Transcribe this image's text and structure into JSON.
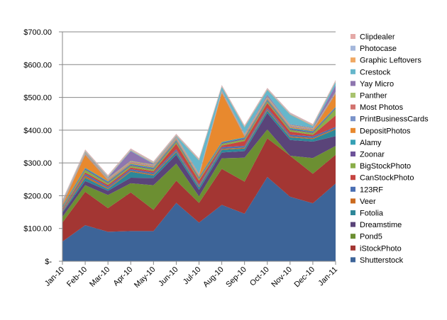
{
  "chart_data": {
    "type": "area",
    "stacked": true,
    "categories": [
      "Jan-10",
      "Feb-10",
      "Mar-10",
      "Apr-10",
      "May-10",
      "Jun-10",
      "Jul-10",
      "Aug-10",
      "Sep-10",
      "Oct-10",
      "Nov-10",
      "Dec-10",
      "Jan-11"
    ],
    "y_tick_labels": [
      "$-",
      "$100.00",
      "$200.00",
      "$300.00",
      "$400.00",
      "$500.00",
      "$600.00",
      "$700.00"
    ],
    "ylim": [
      0,
      700
    ],
    "grid": "horizontal",
    "legend_position": "right",
    "series": [
      {
        "name": "Shutterstock",
        "color": "#3D6498",
        "values": [
          60,
          110,
          90,
          92,
          92,
          178,
          118,
          172,
          145,
          257,
          197,
          177,
          237
        ]
      },
      {
        "name": "iStockPhoto",
        "color": "#A33633",
        "values": [
          58,
          102,
          72,
          118,
          65,
          68,
          60,
          110,
          98,
          118,
          125,
          90,
          88
        ]
      },
      {
        "name": "Pond5",
        "color": "#6C8F32",
        "values": [
          17,
          20,
          40,
          28,
          75,
          52,
          20,
          32,
          73,
          27,
          0,
          48,
          27
        ]
      },
      {
        "name": "Dreamstime",
        "color": "#5A4479",
        "values": [
          13,
          13,
          13,
          17,
          22,
          27,
          20,
          18,
          20,
          50,
          48,
          50,
          30
        ]
      },
      {
        "name": "Fotolia",
        "color": "#2E8799",
        "values": [
          3,
          10,
          5,
          18,
          8,
          8,
          8,
          8,
          8,
          8,
          8,
          8,
          20
        ]
      },
      {
        "name": "Veer",
        "color": "#CB6B20",
        "values": [
          3,
          6,
          3,
          3,
          3,
          3,
          3,
          3,
          3,
          3,
          3,
          3,
          3
        ]
      },
      {
        "name": "123RF",
        "color": "#4A6FB3",
        "values": [
          3,
          5,
          5,
          5,
          5,
          5,
          5,
          5,
          5,
          5,
          5,
          5,
          5
        ]
      },
      {
        "name": "CanStockPhoto",
        "color": "#C64542",
        "values": [
          3,
          5,
          5,
          5,
          5,
          18,
          12,
          5,
          15,
          15,
          10,
          5,
          35
        ]
      },
      {
        "name": "BigStockPhoto",
        "color": "#8AAE4A",
        "values": [
          3,
          8,
          5,
          5,
          5,
          5,
          5,
          5,
          5,
          5,
          5,
          5,
          20
        ]
      },
      {
        "name": "Zoonar",
        "color": "#6E539A",
        "values": [
          3,
          3,
          3,
          3,
          3,
          3,
          3,
          3,
          3,
          3,
          3,
          3,
          3
        ]
      },
      {
        "name": "Alamy",
        "color": "#35A0B5",
        "values": [
          3,
          3,
          3,
          3,
          3,
          3,
          3,
          3,
          3,
          3,
          3,
          3,
          3
        ]
      },
      {
        "name": "DepositPhotos",
        "color": "#E8892E",
        "values": [
          3,
          40,
          3,
          3,
          3,
          3,
          3,
          150,
          3,
          3,
          3,
          3,
          40
        ]
      },
      {
        "name": "PrintBusinessCards",
        "color": "#7A93C9",
        "values": [
          2,
          2,
          2,
          2,
          2,
          2,
          2,
          2,
          2,
          2,
          2,
          2,
          2
        ]
      },
      {
        "name": "Most Photos",
        "color": "#D2736F",
        "values": [
          2,
          2,
          2,
          2,
          2,
          2,
          2,
          2,
          2,
          2,
          2,
          2,
          2
        ]
      },
      {
        "name": "Panther",
        "color": "#A9C36F",
        "values": [
          2,
          2,
          2,
          2,
          2,
          2,
          2,
          2,
          2,
          2,
          2,
          2,
          2
        ]
      },
      {
        "name": "Yay Micro",
        "color": "#8E76AF",
        "values": [
          2,
          2,
          2,
          30,
          2,
          2,
          2,
          2,
          2,
          5,
          2,
          2,
          20
        ]
      },
      {
        "name": "Crestock",
        "color": "#66B7CB",
        "values": [
          2,
          2,
          2,
          2,
          2,
          2,
          40,
          10,
          20,
          15,
          30,
          5,
          10
        ]
      },
      {
        "name": "Graphic Leftovers",
        "color": "#F0A964",
        "values": [
          2,
          2,
          2,
          2,
          2,
          2,
          2,
          2,
          2,
          2,
          2,
          2,
          2
        ]
      },
      {
        "name": "Photocase",
        "color": "#A4B7DB",
        "values": [
          2,
          2,
          2,
          2,
          2,
          2,
          2,
          2,
          2,
          2,
          2,
          2,
          2
        ]
      },
      {
        "name": "Clipdealer",
        "color": "#E4A9A7",
        "values": [
          2,
          2,
          2,
          2,
          2,
          2,
          2,
          2,
          2,
          2,
          2,
          2,
          2
        ]
      }
    ]
  }
}
